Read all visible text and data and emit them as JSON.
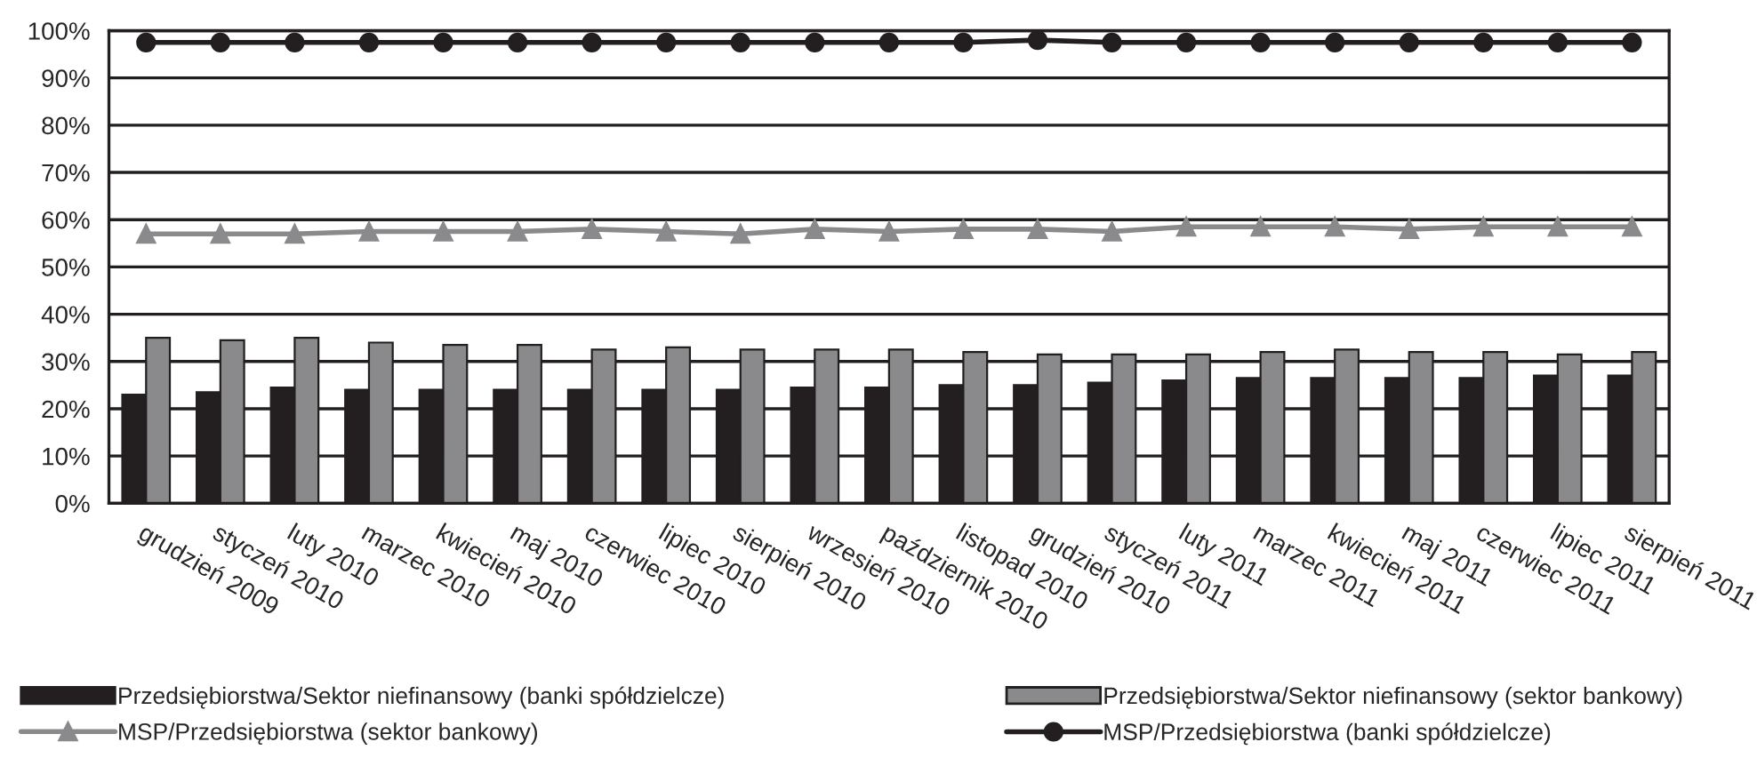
{
  "chart_data": {
    "type": "bar",
    "categories": [
      "grudzień 2009",
      "styczeń 2010",
      "luty 2010",
      "marzec 2010",
      "kwiecień 2010",
      "maj 2010",
      "czerwiec 2010",
      "lipiec 2010",
      "sierpień 2010",
      "wrzesień 2010",
      "październik 2010",
      "listopad 2010",
      "grudzień 2010",
      "styczeń 2011",
      "luty 2011",
      "marzec 2011",
      "kwiecień 2011",
      "maj 2011",
      "czerwiec 2011",
      "lipiec 2011",
      "sierpień 2011"
    ],
    "series": [
      {
        "name": "Przedsiębiorstwa/Sektor niefinansowy (banki spółdzielcze)",
        "color": "#231f20",
        "values": [
          23,
          23.5,
          24.5,
          24,
          24,
          24,
          24,
          24,
          24,
          24.5,
          24.5,
          25,
          25,
          25.5,
          26,
          26.5,
          26.5,
          26.5,
          26.5,
          27,
          27
        ]
      },
      {
        "name": "Przedsiębiorstwa/Sektor niefinansowy (sektor bankowy)",
        "color": "#8a8a8c",
        "values": [
          35,
          34.5,
          35,
          34,
          33.5,
          33.5,
          32.5,
          33,
          32.5,
          32.5,
          32.5,
          32,
          31.5,
          31.5,
          31.5,
          32,
          32.5,
          32,
          32,
          31.5,
          32
        ]
      },
      {
        "name": "MSP/Przedsiębiorstwa (sektor bankowy)",
        "type": "line",
        "marker": "triangle",
        "color": "#8a8a8c",
        "values": [
          57,
          57,
          57,
          57.5,
          57.5,
          57.5,
          58,
          57.5,
          57,
          58,
          57.5,
          58,
          58,
          57.5,
          58.5,
          58.5,
          58.5,
          58,
          58.5,
          58.5,
          58.5
        ]
      },
      {
        "name": "MSP/Przedsiębiorstwa (banki spółdzielcze)",
        "type": "line",
        "marker": "circle",
        "color": "#231f20",
        "values": [
          97.5,
          97.5,
          97.5,
          97.5,
          97.5,
          97.5,
          97.5,
          97.5,
          97.5,
          97.5,
          97.5,
          97.5,
          98,
          97.5,
          97.5,
          97.5,
          97.5,
          97.5,
          97.5,
          97.5,
          97.5
        ]
      }
    ],
    "ylim": [
      0,
      100
    ],
    "yticks": [
      {
        "value": 0,
        "label": "0%"
      },
      {
        "value": 10,
        "label": "10%"
      },
      {
        "value": 20,
        "label": "20%"
      },
      {
        "value": 30,
        "label": "30%"
      },
      {
        "value": 40,
        "label": "40%"
      },
      {
        "value": 50,
        "label": "50%"
      },
      {
        "value": 60,
        "label": "60%"
      },
      {
        "value": 70,
        "label": "70%"
      },
      {
        "value": 80,
        "label": "80%"
      },
      {
        "value": 90,
        "label": "90%"
      },
      {
        "value": 100,
        "label": "100%"
      }
    ],
    "grid": "y",
    "legend": "bottom"
  }
}
